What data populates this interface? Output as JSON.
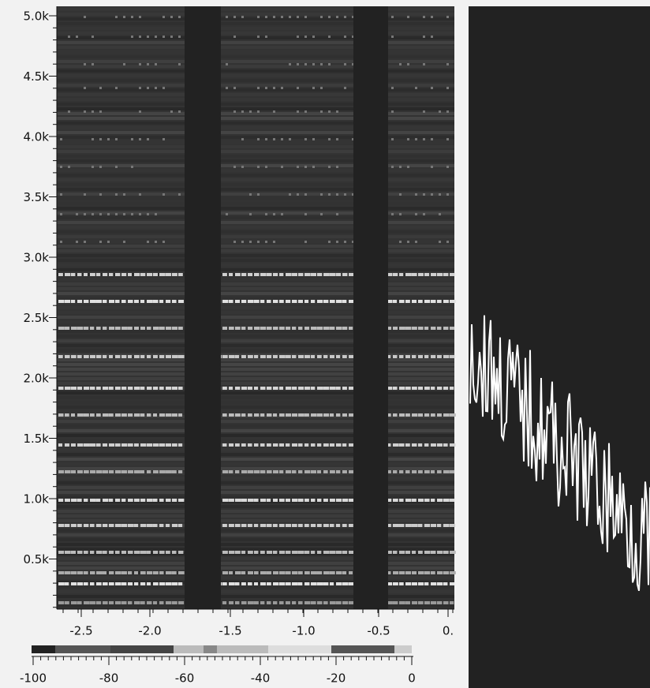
{
  "y_axis": {
    "ticks": [
      "5.0k",
      "4.5k",
      "4.0k",
      "3.5k",
      "3.0k",
      "2.5k",
      "2.0k",
      "1.5k",
      "1.0k",
      "0.5k"
    ]
  },
  "x_axis": {
    "ticks": [
      "-2.5",
      "-2.0",
      "-1.5",
      "-1.0",
      "-0.5",
      "0."
    ]
  },
  "colorbar": {
    "ticks": [
      "-100",
      "-80",
      "-60",
      "-40",
      "-20",
      "0"
    ]
  }
}
